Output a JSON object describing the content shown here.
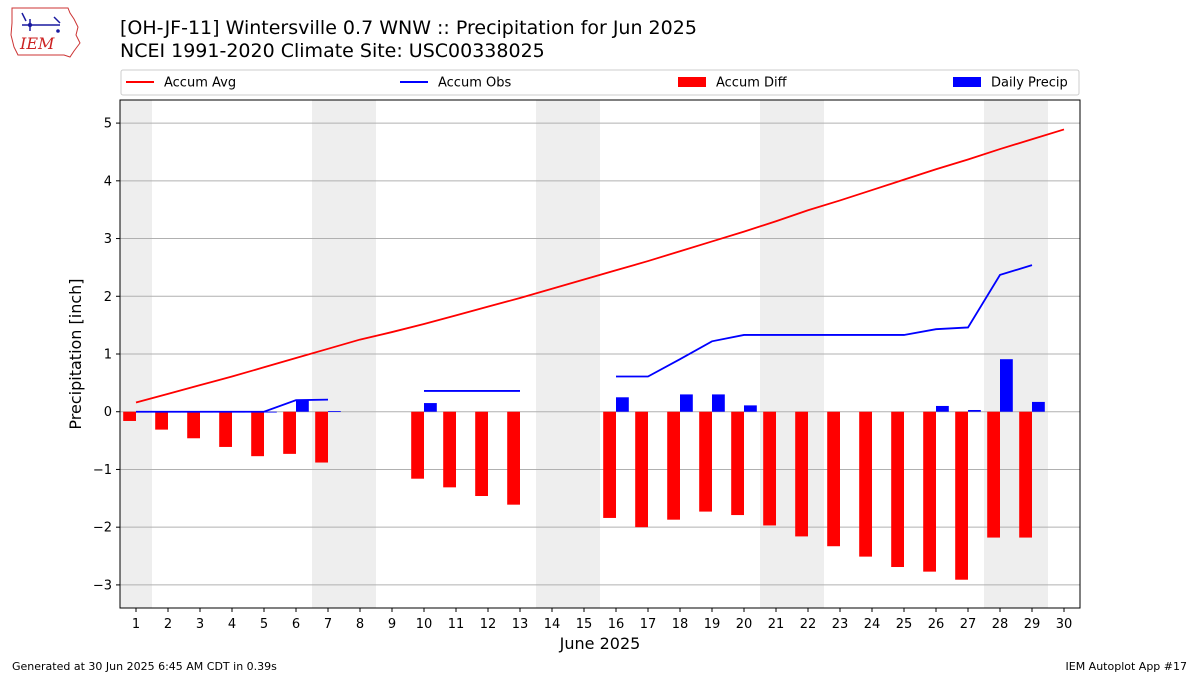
{
  "header": {
    "title_line1": "[OH-JF-11] Wintersville 0.7 WNW :: Precipitation for Jun 2025",
    "title_line2": "NCEI 1991-2020 Climate Site: USC00338025",
    "logo_text": "IEM"
  },
  "footer": {
    "left": "Generated at 30 Jun 2025 6:45 AM CDT in 0.39s",
    "right": "IEM Autoplot App #17"
  },
  "colors": {
    "avg": "#ff0000",
    "obs": "#0000ff",
    "diff": "#ff0000",
    "daily": "#0000ff",
    "weekend_band": "#eeeeee",
    "grid": "#b0b0b0"
  },
  "chart_data": {
    "type": "bar",
    "xlabel": "June 2025",
    "ylabel": "Precipitation [inch]",
    "xlim": [
      0.5,
      30.5
    ],
    "ylim": [
      -3.4,
      5.4
    ],
    "yticks": [
      -3,
      -2,
      -1,
      0,
      1,
      2,
      3,
      4,
      5
    ],
    "xticks": [
      1,
      2,
      3,
      4,
      5,
      6,
      7,
      8,
      9,
      10,
      11,
      12,
      13,
      14,
      15,
      16,
      17,
      18,
      19,
      20,
      21,
      22,
      23,
      24,
      25,
      26,
      27,
      28,
      29,
      30
    ],
    "grid": "horizontal",
    "legend_placement": "top",
    "weekend_bands": [
      [
        0.5,
        1.5
      ],
      [
        6.5,
        8.5
      ],
      [
        13.5,
        15.5
      ],
      [
        20.5,
        22.5
      ],
      [
        27.5,
        29.5
      ]
    ],
    "legend": [
      "Accum Avg",
      "Accum Obs",
      "Accum Diff",
      "Daily Precip"
    ],
    "series": [
      {
        "name": "Accum Avg",
        "kind": "line",
        "x": [
          1,
          2,
          3,
          4,
          5,
          6,
          7,
          8,
          9,
          10,
          11,
          12,
          13,
          14,
          15,
          16,
          17,
          18,
          19,
          20,
          21,
          22,
          23,
          24,
          25,
          26,
          27,
          28,
          29,
          30
        ],
        "values": [
          0.16,
          0.31,
          0.46,
          0.61,
          0.77,
          0.93,
          1.09,
          1.25,
          1.38,
          1.52,
          1.67,
          1.82,
          1.97,
          2.13,
          2.29,
          2.45,
          2.61,
          2.78,
          2.95,
          3.12,
          3.3,
          3.49,
          3.66,
          3.84,
          4.02,
          4.2,
          4.37,
          4.55,
          4.72,
          4.89
        ]
      },
      {
        "name": "Accum Obs",
        "kind": "line",
        "segments": [
          {
            "x": [
              1,
              2,
              3,
              4,
              5,
              6,
              7
            ],
            "values": [
              0.0,
              0.0,
              0.0,
              0.0,
              0.0,
              0.2,
              0.21
            ]
          },
          {
            "x": [
              10,
              11,
              12,
              13
            ],
            "values": [
              0.36,
              0.36,
              0.36,
              0.36
            ]
          },
          {
            "x": [
              16,
              17,
              18,
              19,
              20,
              21,
              22,
              23,
              24,
              25,
              26,
              27,
              28,
              29
            ],
            "values": [
              0.61,
              0.61,
              0.91,
              1.22,
              1.33,
              1.33,
              1.33,
              1.33,
              1.33,
              1.33,
              1.43,
              1.46,
              2.37,
              2.54
            ]
          }
        ]
      },
      {
        "name": "Accum Diff",
        "kind": "bar",
        "x": [
          1,
          2,
          3,
          4,
          5,
          6,
          7,
          10,
          11,
          12,
          13,
          16,
          17,
          18,
          19,
          20,
          21,
          22,
          23,
          24,
          25,
          26,
          27,
          28,
          29
        ],
        "values": [
          -0.16,
          -0.31,
          -0.46,
          -0.61,
          -0.77,
          -0.73,
          -0.88,
          -1.16,
          -1.31,
          -1.46,
          -1.61,
          -1.84,
          -2.0,
          -1.87,
          -1.73,
          -1.79,
          -1.97,
          -2.16,
          -2.33,
          -2.51,
          -2.69,
          -2.77,
          -2.91,
          -2.18,
          -2.18
        ]
      },
      {
        "name": "Daily Precip",
        "kind": "bar",
        "x": [
          1,
          2,
          3,
          4,
          5,
          6,
          7,
          10,
          16,
          18,
          19,
          20,
          26,
          27,
          28,
          29
        ],
        "values": [
          0.0,
          0.0,
          0.0,
          0.0,
          0.0,
          0.2,
          0.01,
          0.15,
          0.25,
          0.3,
          0.3,
          0.11,
          0.1,
          0.03,
          0.91,
          0.17
        ]
      }
    ]
  }
}
